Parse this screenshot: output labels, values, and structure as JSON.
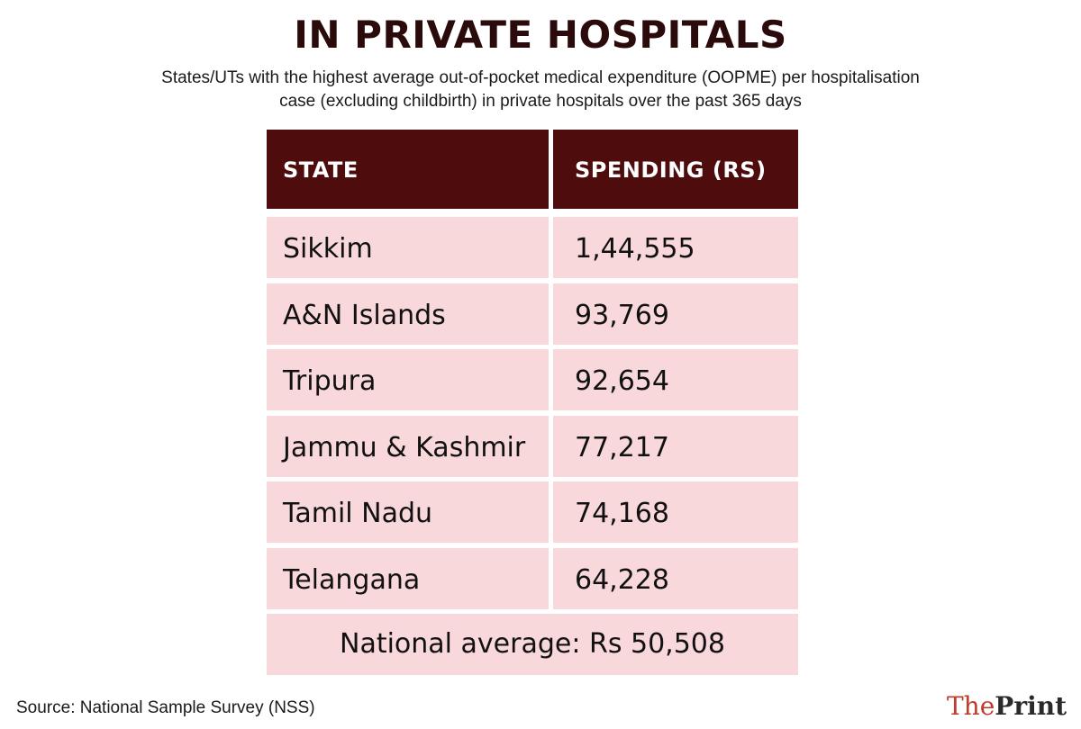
{
  "title": "IN PRIVATE HOSPITALS",
  "subtitle_line1": "States/UTs with the highest average out-of-pocket medical expenditure (OOPME) per hospitalisation",
  "subtitle_line2": "case (excluding childbirth) in private hospitals over the past 365 days",
  "source": "Source: National Sample Survey (NSS)",
  "logo": {
    "the": "The",
    "print": "Print"
  },
  "chart_data": {
    "type": "table",
    "columns": [
      "STATE",
      "SPENDING (RS)"
    ],
    "rows": [
      {
        "state": "Sikkim",
        "spending": "1,44,555"
      },
      {
        "state": "A&N Islands",
        "spending": "93,769"
      },
      {
        "state": "Tripura",
        "spending": "92,654"
      },
      {
        "state": "Jammu & Kashmir",
        "spending": "77,217"
      },
      {
        "state": "Tamil Nadu",
        "spending": "74,168"
      },
      {
        "state": "Telangana",
        "spending": "64,228"
      }
    ],
    "footer": "National average: Rs 50,508"
  },
  "colors": {
    "header_bg": "#4e0c0c",
    "row_bg": "#f8d8db",
    "logo_accent": "#c0392b"
  }
}
